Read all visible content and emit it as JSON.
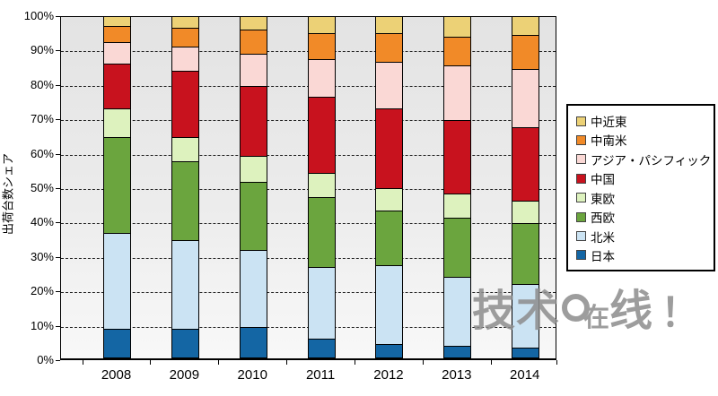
{
  "chart_data": {
    "type": "bar",
    "variant": "stacked-100-percent",
    "title": "",
    "xlabel": "",
    "ylabel": "出荷台数シェア",
    "ylim": [
      0,
      100
    ],
    "grid": "horizontal-dashed",
    "legend_position": "right",
    "plot_background": [
      "#e3e3e3",
      "#f8f8f8"
    ],
    "categories": [
      "2008",
      "2009",
      "2010",
      "2011",
      "2012",
      "2013",
      "2014"
    ],
    "y_ticks": [
      "0%",
      "10%",
      "20%",
      "30%",
      "40%",
      "50%",
      "60%",
      "70%",
      "80%",
      "90%",
      "100%"
    ],
    "series": [
      {
        "name": "日本",
        "color": "#1466a4",
        "values": [
          8.5,
          8.5,
          9.0,
          5.5,
          4.0,
          3.5,
          3.0
        ]
      },
      {
        "name": "北米",
        "color": "#cbe3f3",
        "values": [
          28.0,
          26.0,
          22.5,
          21.0,
          23.0,
          20.0,
          18.5
        ]
      },
      {
        "name": "西欧",
        "color": "#6ba53e",
        "values": [
          28.0,
          23.0,
          20.0,
          20.5,
          16.0,
          17.5,
          18.0
        ]
      },
      {
        "name": "東欧",
        "color": "#ddf2be",
        "values": [
          8.5,
          7.0,
          7.5,
          7.0,
          6.5,
          7.0,
          6.5
        ]
      },
      {
        "name": "中国",
        "color": "#c8121e",
        "values": [
          13.0,
          19.5,
          20.5,
          22.5,
          23.5,
          21.5,
          21.5
        ]
      },
      {
        "name": "アジア・パシフィック",
        "color": "#fad8d5",
        "values": [
          6.5,
          7.0,
          9.5,
          11.0,
          13.5,
          16.0,
          17.0
        ]
      },
      {
        "name": "中南米",
        "color": "#f18a28",
        "values": [
          4.5,
          5.5,
          7.0,
          7.5,
          8.5,
          8.5,
          10.0
        ]
      },
      {
        "name": "中近東",
        "color": "#ecd176",
        "values": [
          3.0,
          3.5,
          4.0,
          5.0,
          5.0,
          6.0,
          5.5
        ]
      }
    ]
  },
  "watermark": {
    "prefix": "技术",
    "middle": "在",
    "suffix": "线",
    "exclamation": "！",
    "color": "#8d8d8d"
  }
}
